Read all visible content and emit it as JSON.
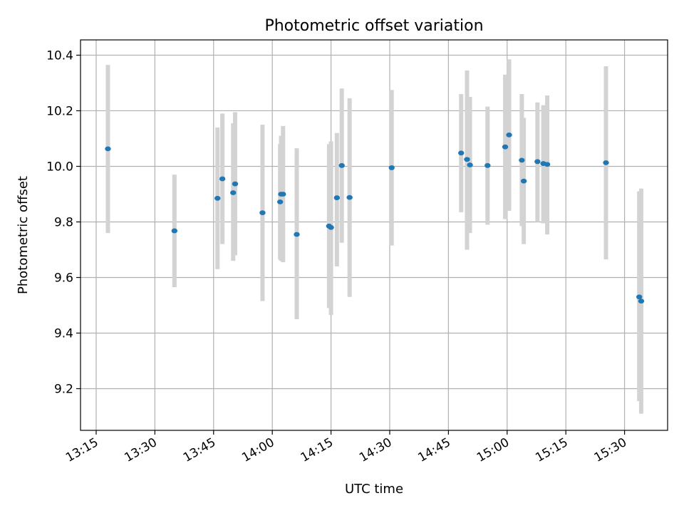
{
  "chart_data": {
    "type": "scatter",
    "title": "Photometric offset variation",
    "xlabel": "UTC time",
    "ylabel": "Photometric offset",
    "xlim": [
      "13:11",
      "15:41"
    ],
    "ylim": [
      9.05,
      10.455
    ],
    "grid": true,
    "x_ticks": [
      "13:15",
      "13:30",
      "13:45",
      "14:00",
      "14:15",
      "14:30",
      "14:45",
      "15:00",
      "15:15",
      "15:30"
    ],
    "y_ticks": [
      "9.2",
      "9.4",
      "9.6",
      "9.8",
      "10.0",
      "10.2",
      "10.4"
    ],
    "marker_color": "#1f77b4",
    "errorbar_color": "#d3d3d3",
    "points": [
      {
        "x": "13:18:00",
        "y": 10.063,
        "lo": 9.76,
        "hi": 10.365
      },
      {
        "x": "13:35:00",
        "y": 9.768,
        "lo": 9.565,
        "hi": 9.97
      },
      {
        "x": "13:46:00",
        "y": 9.885,
        "lo": 9.63,
        "hi": 10.14
      },
      {
        "x": "13:47:15",
        "y": 9.955,
        "lo": 9.72,
        "hi": 10.19
      },
      {
        "x": "13:50:00",
        "y": 9.905,
        "lo": 9.66,
        "hi": 10.155
      },
      {
        "x": "13:50:30",
        "y": 9.937,
        "lo": 9.68,
        "hi": 10.195
      },
      {
        "x": "13:57:30",
        "y": 9.833,
        "lo": 9.515,
        "hi": 10.15
      },
      {
        "x": "14:02:00",
        "y": 9.872,
        "lo": 9.665,
        "hi": 10.08
      },
      {
        "x": "14:02:15",
        "y": 9.9,
        "lo": 9.66,
        "hi": 10.11
      },
      {
        "x": "14:02:45",
        "y": 9.9,
        "lo": 9.655,
        "hi": 10.145
      },
      {
        "x": "14:06:15",
        "y": 9.755,
        "lo": 9.45,
        "hi": 10.065
      },
      {
        "x": "14:14:30",
        "y": 9.785,
        "lo": 9.49,
        "hi": 10.08
      },
      {
        "x": "14:15:00",
        "y": 9.78,
        "lo": 9.465,
        "hi": 10.09
      },
      {
        "x": "14:16:30",
        "y": 9.887,
        "lo": 9.64,
        "hi": 10.12
      },
      {
        "x": "14:17:45",
        "y": 10.003,
        "lo": 9.725,
        "hi": 10.28
      },
      {
        "x": "14:19:45",
        "y": 9.888,
        "lo": 9.53,
        "hi": 10.245
      },
      {
        "x": "14:30:30",
        "y": 9.995,
        "lo": 9.715,
        "hi": 10.275
      },
      {
        "x": "14:48:15",
        "y": 10.048,
        "lo": 9.835,
        "hi": 10.26
      },
      {
        "x": "14:49:45",
        "y": 10.025,
        "lo": 9.7,
        "hi": 10.345
      },
      {
        "x": "14:50:30",
        "y": 10.005,
        "lo": 9.76,
        "hi": 10.25
      },
      {
        "x": "14:55:00",
        "y": 10.003,
        "lo": 9.79,
        "hi": 10.215
      },
      {
        "x": "14:59:30",
        "y": 10.07,
        "lo": 9.81,
        "hi": 10.33
      },
      {
        "x": "15:00:30",
        "y": 10.113,
        "lo": 9.84,
        "hi": 10.385
      },
      {
        "x": "15:03:45",
        "y": 10.022,
        "lo": 9.785,
        "hi": 10.26
      },
      {
        "x": "15:04:15",
        "y": 9.947,
        "lo": 9.72,
        "hi": 10.175
      },
      {
        "x": "15:07:45",
        "y": 10.017,
        "lo": 9.8,
        "hi": 10.23
      },
      {
        "x": "15:09:15",
        "y": 10.01,
        "lo": 9.795,
        "hi": 10.22
      },
      {
        "x": "15:10:15",
        "y": 10.007,
        "lo": 9.755,
        "hi": 10.255
      },
      {
        "x": "15:25:15",
        "y": 10.013,
        "lo": 9.665,
        "hi": 10.36
      },
      {
        "x": "15:33:45",
        "y": 9.53,
        "lo": 9.155,
        "hi": 9.91
      },
      {
        "x": "15:34:15",
        "y": 9.515,
        "lo": 9.11,
        "hi": 9.92
      }
    ]
  }
}
